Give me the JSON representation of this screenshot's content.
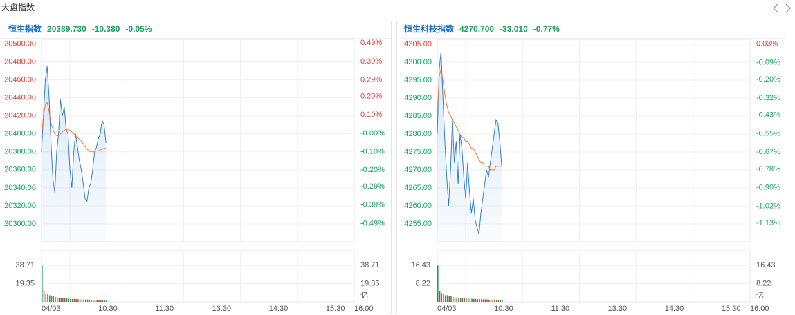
{
  "header": {
    "title": "大盘指数"
  },
  "chart_data": [
    {
      "type": "intraday",
      "title": "恒生指数",
      "price": "20389.730",
      "change": "-10.380",
      "change_pct": "-0.05%",
      "xlim": [
        0,
        330
      ],
      "xticks": [
        {
          "value": 0,
          "label": "04/03"
        },
        {
          "value": 60,
          "label": "10:30"
        },
        {
          "value": 120,
          "label": "11:30"
        },
        {
          "value": 180,
          "label": "13:30"
        },
        {
          "value": 240,
          "label": "14:30"
        },
        {
          "value": 300,
          "label": "15:30"
        },
        {
          "value": 330,
          "label": "16:00"
        }
      ],
      "xgrid": [
        30,
        90,
        150,
        210,
        270
      ],
      "ylim": [
        20280,
        20505
      ],
      "yticks": [
        {
          "value": 20500,
          "label": "20500.00"
        },
        {
          "value": 20480,
          "label": "20480.00"
        },
        {
          "value": 20460,
          "label": "20460.00"
        },
        {
          "value": 20440,
          "label": "20440.00"
        },
        {
          "value": 20420,
          "label": "20420.00"
        },
        {
          "value": 20400,
          "label": "20400.00"
        },
        {
          "value": 20380,
          "label": "20380.00"
        },
        {
          "value": 20360,
          "label": "20360.00"
        },
        {
          "value": 20340,
          "label": "20340.00"
        },
        {
          "value": 20320,
          "label": "20320.00"
        },
        {
          "value": 20300,
          "label": "20300.00"
        }
      ],
      "y2lim": [
        -0.59,
        0.51
      ],
      "y2ticks": [
        {
          "value": 0.49,
          "label": "0.49%"
        },
        {
          "value": 0.39,
          "label": "0.39%"
        },
        {
          "value": 0.29,
          "label": "0.29%"
        },
        {
          "value": 0.2,
          "label": "0.20%"
        },
        {
          "value": 0.1,
          "label": "0.10%"
        },
        {
          "value": 0,
          "label": "-0.00%"
        },
        {
          "value": -0.1,
          "label": "-0.10%"
        },
        {
          "value": -0.2,
          "label": "-0.20%"
        },
        {
          "value": -0.29,
          "label": "-0.29%"
        },
        {
          "value": -0.39,
          "label": "-0.39%"
        },
        {
          "value": -0.49,
          "label": "-0.49%"
        }
      ],
      "up_color": "#e0403b",
      "down_color": "#17a35e",
      "x": [
        0,
        2,
        4,
        6,
        8,
        10,
        12,
        14,
        16,
        18,
        20,
        22,
        24,
        26,
        28,
        30,
        32,
        34,
        36,
        38,
        40,
        42,
        44,
        46,
        48,
        50,
        52,
        54,
        56,
        58,
        60,
        62,
        64,
        66,
        68
      ],
      "price_line": {
        "color": "#2f7fd8",
        "values": [
          20380,
          20420,
          20460,
          20475,
          20440,
          20390,
          20350,
          20335,
          20380,
          20400,
          20438,
          20420,
          20430,
          20405,
          20400,
          20360,
          20340,
          20380,
          20400,
          20385,
          20370,
          20360,
          20345,
          20328,
          20325,
          20340,
          20345,
          20360,
          20380,
          20385,
          20395,
          20400,
          20415,
          20410,
          20390
        ]
      },
      "average_line": {
        "color": "#f07a3a",
        "values": [
          20395,
          20420,
          20432,
          20435,
          20425,
          20412,
          20405,
          20400,
          20398,
          20398,
          20400,
          20402,
          20404,
          20405,
          20405,
          20404,
          20402,
          20400,
          20398,
          20396,
          20394,
          20392,
          20389,
          20386,
          20383,
          20381,
          20380,
          20380,
          20380,
          20381,
          20381,
          20382,
          20383,
          20384,
          20384
        ]
      },
      "volume": {
        "ylim": [
          0,
          54.3
        ],
        "yticks": [
          38.71,
          19.35
        ],
        "unit": "亿",
        "values": [
          38.71,
          12,
          9,
          8,
          7,
          6,
          6,
          5,
          5,
          4.5,
          4,
          4,
          4,
          3.5,
          3.5,
          3,
          3,
          3,
          3,
          2.8,
          2.8,
          2.5,
          2.5,
          2.5,
          2.5,
          2.3,
          2.3,
          2.2,
          2.2,
          2,
          2,
          2,
          2,
          2,
          1.8
        ],
        "colors": [
          "#17a35e",
          "#e0403b",
          "#e0403b",
          "#17a35e",
          "#17a35e",
          "#e0403b",
          "#17a35e",
          "#e0403b",
          "#17a35e",
          "#e0403b",
          "#e0403b",
          "#17a35e",
          "#e0403b",
          "#17a35e",
          "#17a35e",
          "#e0403b",
          "#17a35e",
          "#e0403b",
          "#e0403b",
          "#17a35e",
          "#e0403b",
          "#17a35e",
          "#17a35e",
          "#e0403b",
          "#17a35e",
          "#e0403b",
          "#e0403b",
          "#17a35e",
          "#e0403b",
          "#e0403b",
          "#17a35e",
          "#e0403b",
          "#e0403b",
          "#17a35e",
          "#17a35e"
        ]
      }
    },
    {
      "type": "intraday",
      "title": "恒生科技指数",
      "price": "4270.700",
      "change": "-33.010",
      "change_pct": "-0.77%",
      "xlim": [
        0,
        330
      ],
      "xticks": [
        {
          "value": 0,
          "label": "04/03"
        },
        {
          "value": 60,
          "label": "10:30"
        },
        {
          "value": 120,
          "label": "11:30"
        },
        {
          "value": 180,
          "label": "13:30"
        },
        {
          "value": 240,
          "label": "14:30"
        },
        {
          "value": 300,
          "label": "15:30"
        },
        {
          "value": 330,
          "label": "16:00"
        }
      ],
      "xgrid": [
        30,
        90,
        150,
        210,
        270
      ],
      "ylim": [
        4250,
        4306.35
      ],
      "yticks": [
        {
          "value": 4305,
          "label": "4305.00"
        },
        {
          "value": 4300,
          "label": "4300.00"
        },
        {
          "value": 4295,
          "label": "4295.00"
        },
        {
          "value": 4290,
          "label": "4290.00"
        },
        {
          "value": 4285,
          "label": "4285.00"
        },
        {
          "value": 4280,
          "label": "4280.00"
        },
        {
          "value": 4275,
          "label": "4275.00"
        },
        {
          "value": 4270,
          "label": "4270.00"
        },
        {
          "value": 4265,
          "label": "4265.00"
        },
        {
          "value": 4260,
          "label": "4260.00"
        },
        {
          "value": 4255,
          "label": "4255.00"
        }
      ],
      "y2lim": [
        -1.25,
        0.06
      ],
      "y2ticks": [
        {
          "value": 0.03,
          "label": "0.03%"
        },
        {
          "value": -0.09,
          "label": "-0.09%"
        },
        {
          "value": -0.2,
          "label": "-0.20%"
        },
        {
          "value": -0.32,
          "label": "-0.32%"
        },
        {
          "value": -0.43,
          "label": "-0.43%"
        },
        {
          "value": -0.55,
          "label": "-0.55%"
        },
        {
          "value": -0.67,
          "label": "-0.67%"
        },
        {
          "value": -0.78,
          "label": "-0.78%"
        },
        {
          "value": -0.9,
          "label": "-0.90%"
        },
        {
          "value": -1.02,
          "label": "-1.02%"
        },
        {
          "value": -1.13,
          "label": "-1.13%"
        }
      ],
      "up_color": "#e0403b",
      "down_color": "#17a35e",
      "x": [
        0,
        2,
        4,
        6,
        8,
        10,
        12,
        14,
        16,
        18,
        20,
        22,
        24,
        26,
        28,
        30,
        32,
        34,
        36,
        38,
        40,
        42,
        44,
        46,
        48,
        50,
        52,
        54,
        56,
        58,
        60,
        62,
        64,
        66,
        68
      ],
      "price_line": {
        "color": "#2f7fd8",
        "values": [
          4280,
          4298,
          4303,
          4290,
          4278,
          4268,
          4260,
          4270,
          4284,
          4272,
          4278,
          4266,
          4280,
          4276,
          4268,
          4262,
          4272,
          4264,
          4258,
          4262,
          4256,
          4254,
          4252,
          4258,
          4262,
          4266,
          4270,
          4268,
          4272,
          4276,
          4280,
          4284,
          4283,
          4278,
          4271
        ]
      },
      "average_line": {
        "color": "#f07a3a",
        "values": [
          4285,
          4296,
          4298,
          4295,
          4291,
          4288,
          4286,
          4285,
          4284,
          4283,
          4282,
          4281,
          4280,
          4279,
          4279,
          4278,
          4278,
          4277,
          4276,
          4276,
          4275,
          4274,
          4273,
          4272,
          4272,
          4271,
          4271,
          4271,
          4270,
          4270,
          4270,
          4271,
          4271,
          4271,
          4271
        ]
      },
      "volume": {
        "ylim": [
          0,
          23.07
        ],
        "yticks": [
          16.43,
          8.22
        ],
        "unit": "亿",
        "values": [
          16.43,
          5,
          4,
          3.5,
          3,
          3,
          2.5,
          2.5,
          2.2,
          2,
          2,
          1.8,
          1.8,
          1.6,
          1.6,
          1.5,
          1.5,
          1.4,
          1.4,
          1.3,
          1.3,
          1.2,
          1.2,
          1.2,
          1.1,
          1.1,
          1.1,
          1,
          1,
          1,
          1,
          1,
          0.9,
          0.9,
          0.9
        ],
        "colors": [
          "#17a35e",
          "#e0403b",
          "#17a35e",
          "#17a35e",
          "#e0403b",
          "#17a35e",
          "#e0403b",
          "#17a35e",
          "#e0403b",
          "#e0403b",
          "#17a35e",
          "#17a35e",
          "#e0403b",
          "#17a35e",
          "#e0403b",
          "#17a35e",
          "#e0403b",
          "#17a35e",
          "#17a35e",
          "#e0403b",
          "#e0403b",
          "#17a35e",
          "#e0403b",
          "#17a35e",
          "#e0403b",
          "#e0403b",
          "#17a35e",
          "#e0403b",
          "#17a35e",
          "#e0403b",
          "#e0403b",
          "#17a35e",
          "#e0403b",
          "#17a35e",
          "#17a35e"
        ]
      }
    }
  ]
}
